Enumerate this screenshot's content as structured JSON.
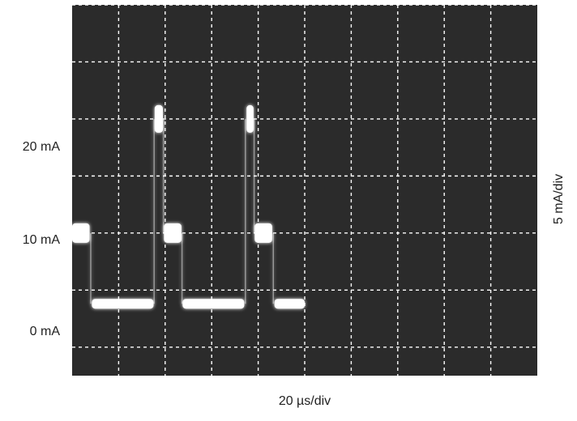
{
  "chart_data": {
    "type": "line",
    "display": "oscilloscope trace",
    "y_tick_labels": [
      "20 mA",
      "10 mA",
      "0 mA"
    ],
    "y_tick_values": [
      20,
      10,
      0
    ],
    "y_scale_label": "5 mA/div",
    "x_scale_label": "20 µs/div",
    "divisions": {
      "x": 10,
      "y": 7
    },
    "ylim": [
      -2.5,
      30
    ],
    "xlim": [
      0,
      200
    ],
    "grid": true,
    "colors": {
      "screen": "#2b2b2b",
      "grid": "#ffffff",
      "trace": "#ffffff"
    },
    "series": [
      {
        "units": {
          "x": "µs",
          "y": "mA"
        },
        "segments": [
          {
            "x": [
              0,
              7.5
            ],
            "y": [
              10,
              10
            ]
          },
          {
            "x": [
              8.5,
              35
            ],
            "y": [
              3.8,
              3.8
            ]
          },
          {
            "x": [
              35.5,
              39
            ],
            "y": [
              20,
              20
            ]
          },
          {
            "x": [
              39.5,
              47
            ],
            "y": [
              10,
              10
            ]
          },
          {
            "x": [
              47.5,
              74
            ],
            "y": [
              3.8,
              3.8
            ]
          },
          {
            "x": [
              75,
              78
            ],
            "y": [
              20,
              20
            ]
          },
          {
            "x": [
              78.5,
              86
            ],
            "y": [
              10,
              10
            ]
          },
          {
            "x": [
              87,
              100
            ],
            "y": [
              3.8,
              3.8
            ]
          }
        ]
      }
    ]
  }
}
